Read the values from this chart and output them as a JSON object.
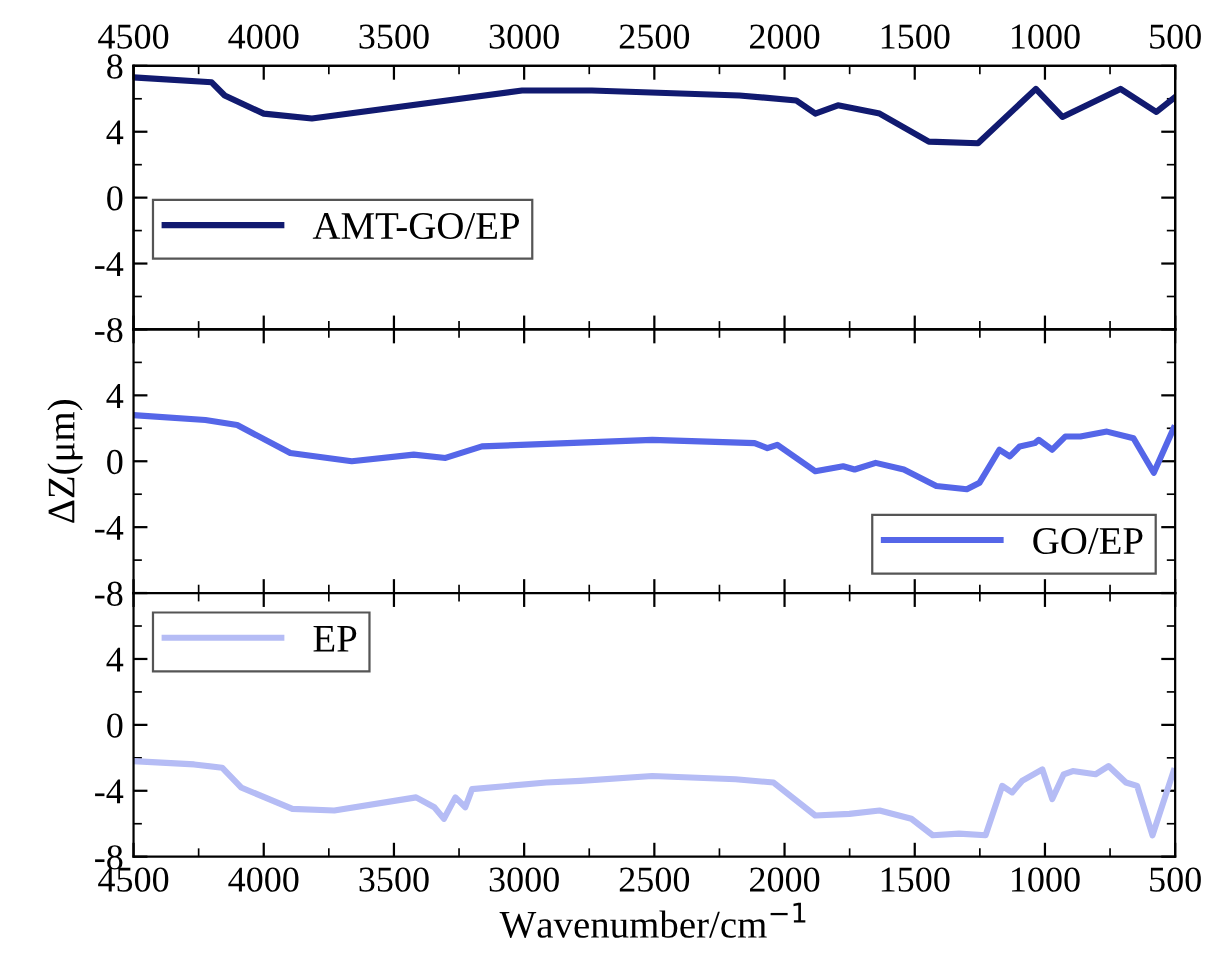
{
  "chart_data": [
    {
      "type": "line",
      "xlim": [
        4500,
        500
      ],
      "xticks": [
        {
          "value": 4500,
          "label": null
        },
        {
          "value": 4000,
          "label": null
        },
        {
          "value": 3500,
          "label": null
        },
        {
          "value": 3000,
          "label": null
        },
        {
          "value": 2500,
          "label": null
        },
        {
          "value": 2000,
          "label": null
        },
        {
          "value": 1500,
          "label": null
        },
        {
          "value": 1000,
          "label": null
        },
        {
          "value": 500,
          "label": null
        }
      ],
      "x2lim": [
        4500,
        500
      ],
      "x2ticks": [
        4500,
        4000,
        3500,
        3000,
        2500,
        2000,
        1500,
        1000,
        500
      ],
      "ylim": [
        -8,
        8
      ],
      "yticks": [
        -8,
        -4,
        0,
        4,
        8
      ],
      "tick_labels": "y",
      "legend": "left",
      "grid": false,
      "series": [
        {
          "name": "AMT-GO/EP",
          "color": "#111a70",
          "x": [
            4500,
            4200,
            4150,
            4000,
            3815,
            3008,
            2740,
            2173,
            1955,
            1882,
            1795,
            1635,
            1446,
            1257,
            1035,
            933,
            710,
            572,
            500
          ],
          "values": [
            7.3,
            7.0,
            6.2,
            5.1,
            4.8,
            6.5,
            6.5,
            6.2,
            5.9,
            5.1,
            5.6,
            5.1,
            3.4,
            3.3,
            6.6,
            4.9,
            6.6,
            5.2,
            6.1
          ]
        }
      ]
    },
    {
      "type": "line",
      "xlim": [
        4500,
        500
      ],
      "xticks": [
        {
          "value": 4500,
          "label": null
        },
        {
          "value": 4000,
          "label": null
        },
        {
          "value": 3500,
          "label": null
        },
        {
          "value": 3000,
          "label": null
        },
        {
          "value": 2500,
          "label": null
        },
        {
          "value": 2000,
          "label": null
        },
        {
          "value": 1500,
          "label": null
        },
        {
          "value": 1000,
          "label": null
        },
        {
          "value": 500,
          "label": null
        }
      ],
      "ylim": [
        -8,
        8
      ],
      "yticks": [
        -8,
        -4,
        0,
        4,
        {
          "value": 8,
          "label": null
        }
      ],
      "tick_labels": "y",
      "ylabel": "ΔZ(μm)",
      "legend": "bottom right",
      "grid": false,
      "series": [
        {
          "name": "GO/EP",
          "color": "#5566e8",
          "x": [
            4500,
            4224,
            4102,
            3898,
            3662,
            3424,
            3302,
            3162,
            2508,
            2115,
            2066,
            2028,
            1882,
            1775,
            1731,
            1650,
            1542,
            1417,
            1300,
            1251,
            1175,
            1135,
            1097,
            1039,
            1024,
            972,
            922,
            864,
            762,
            660,
            582,
            506
          ],
          "values": [
            2.8,
            2.5,
            2.2,
            0.5,
            0.0,
            0.4,
            0.2,
            0.9,
            1.3,
            1.1,
            0.8,
            1.0,
            -0.6,
            -0.3,
            -0.5,
            -0.1,
            -0.5,
            -1.5,
            -1.7,
            -1.3,
            0.7,
            0.3,
            0.9,
            1.1,
            1.3,
            0.7,
            1.5,
            1.5,
            1.8,
            1.4,
            -0.7,
            2.0
          ]
        }
      ]
    },
    {
      "type": "line",
      "xlim": [
        4500,
        500
      ],
      "xticks": [
        4500,
        4000,
        3500,
        3000,
        2500,
        2000,
        1500,
        1000,
        500
      ],
      "ylim": [
        -8,
        8
      ],
      "yticks": [
        -8,
        -4,
        0,
        4,
        {
          "value": 8,
          "label": null
        }
      ],
      "xlabel": "Wavenumber/cm$^{−1}$",
      "legend": "top left",
      "grid": false,
      "series": [
        {
          "name": "EP",
          "color": "#b5bcf5",
          "x": [
            4500,
            4267,
            4160,
            4087,
            3890,
            3729,
            3415,
            3345,
            3308,
            3264,
            3226,
            3200,
            2915,
            2784,
            2508,
            2188,
            2042,
            1882,
            1751,
            1635,
            1513,
            1431,
            1330,
            1228,
            1164,
            1126,
            1088,
            1010,
            972,
            928,
            893,
            806,
            756,
            689,
            646,
            587,
            506
          ],
          "values": [
            -2.2,
            -2.4,
            -2.6,
            -3.8,
            -5.1,
            -5.2,
            -4.4,
            -5.0,
            -5.7,
            -4.4,
            -5.0,
            -3.9,
            -3.5,
            -3.4,
            -3.1,
            -3.3,
            -3.5,
            -5.5,
            -5.4,
            -5.2,
            -5.7,
            -6.7,
            -6.6,
            -6.7,
            -3.7,
            -4.1,
            -3.4,
            -2.7,
            -4.5,
            -3.0,
            -2.8,
            -3.0,
            -2.5,
            -3.5,
            -3.7,
            -6.7,
            -2.8
          ]
        }
      ]
    }
  ]
}
